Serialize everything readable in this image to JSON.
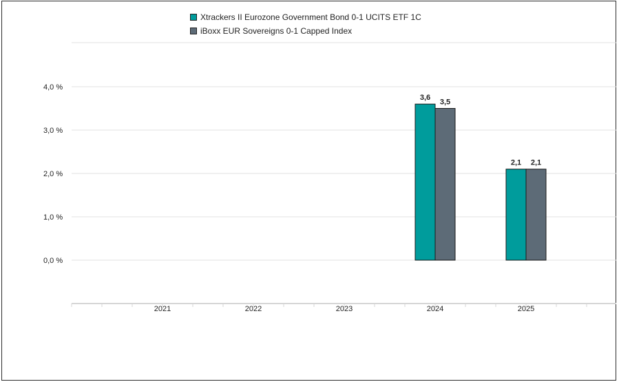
{
  "chart_data": {
    "type": "bar",
    "categories": [
      "2021",
      "2022",
      "2023",
      "2024",
      "2025"
    ],
    "series": [
      {
        "name": "Xtrackers II Eurozone Government Bond 0-1 UCITS ETF 1C",
        "color": "#009c9c",
        "values": [
          null,
          null,
          null,
          3.6,
          2.1
        ],
        "labels": [
          "",
          "",
          "",
          "3,6",
          "2,1"
        ]
      },
      {
        "name": "iBoxx EUR Sovereigns 0-1 Capped Index",
        "color": "#5d6b77",
        "values": [
          null,
          null,
          null,
          3.5,
          2.1
        ],
        "labels": [
          "",
          "",
          "",
          "3,5",
          "2,1"
        ]
      }
    ],
    "yticks": [
      {
        "value": 0,
        "label": "0,0 %"
      },
      {
        "value": 1,
        "label": "1,0 %"
      },
      {
        "value": 2,
        "label": "2,0 %"
      },
      {
        "value": 3,
        "label": "3,0 %"
      },
      {
        "value": 4,
        "label": "4,0 %"
      }
    ],
    "ylim": [
      -1,
      5
    ],
    "grid": true,
    "legend_position": "top-center"
  }
}
